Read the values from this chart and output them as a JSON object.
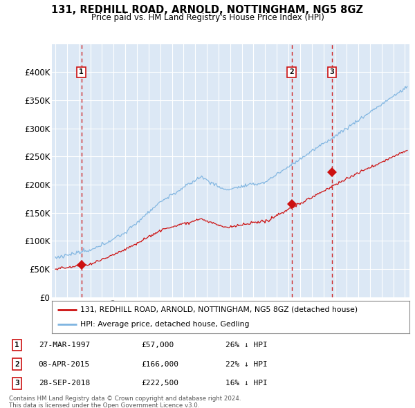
{
  "title": "131, REDHILL ROAD, ARNOLD, NOTTINGHAM, NG5 8GZ",
  "subtitle": "Price paid vs. HM Land Registry's House Price Index (HPI)",
  "sale_dates_num": [
    1997.23,
    2015.27,
    2018.75
  ],
  "sale_prices": [
    57000,
    166000,
    222500
  ],
  "sale_labels": [
    "1",
    "2",
    "3"
  ],
  "hpi_color": "#7eb4e0",
  "price_color": "#cc1111",
  "dashed_color": "#cc1111",
  "plot_bg": "#dce8f5",
  "ylim": [
    0,
    450000
  ],
  "yticks": [
    0,
    50000,
    100000,
    150000,
    200000,
    250000,
    300000,
    350000,
    400000
  ],
  "ytick_labels": [
    "£0",
    "£50K",
    "£100K",
    "£150K",
    "£200K",
    "£250K",
    "£300K",
    "£350K",
    "£400K"
  ],
  "xlim_start": 1994.7,
  "xlim_end": 2025.4,
  "legend_line1": "131, REDHILL ROAD, ARNOLD, NOTTINGHAM, NG5 8GZ (detached house)",
  "legend_line2": "HPI: Average price, detached house, Gedling",
  "table_rows": [
    [
      "1",
      "27-MAR-1997",
      "£57,000",
      "26% ↓ HPI"
    ],
    [
      "2",
      "08-APR-2015",
      "£166,000",
      "22% ↓ HPI"
    ],
    [
      "3",
      "28-SEP-2018",
      "£222,500",
      "16% ↓ HPI"
    ]
  ],
  "footnote1": "Contains HM Land Registry data © Crown copyright and database right 2024.",
  "footnote2": "This data is licensed under the Open Government Licence v3.0."
}
